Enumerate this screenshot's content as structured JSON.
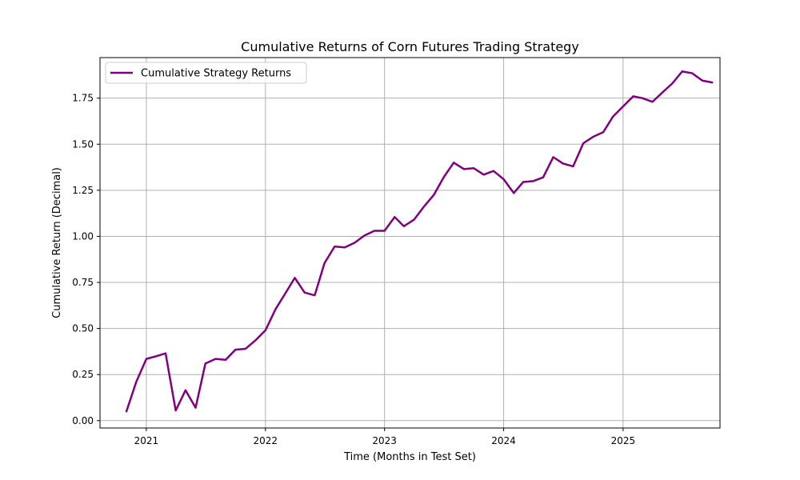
{
  "chart_data": {
    "type": "line",
    "title": "Cumulative Returns of Corn Futures Trading Strategy",
    "xlabel": "Time (Months in Test Set)",
    "ylabel": "Cumulative Return (Decimal)",
    "xlim": [
      "2020-08-12",
      "2025-10-25"
    ],
    "ylim": [
      -0.04,
      1.97
    ],
    "x_ticks": [
      "2021",
      "2022",
      "2023",
      "2024",
      "2025"
    ],
    "y_ticks": [
      "0.00",
      "0.25",
      "0.50",
      "0.75",
      "1.00",
      "1.25",
      "1.50",
      "1.75"
    ],
    "grid": true,
    "legend": "upper left",
    "colors": {
      "line": "#800080",
      "grid": "#b0b0b0"
    },
    "series": [
      {
        "name": "Cumulative Strategy Returns",
        "x": [
          "2020-11-01",
          "2020-12-01",
          "2021-01-01",
          "2021-02-01",
          "2021-03-01",
          "2021-04-01",
          "2021-05-01",
          "2021-06-01",
          "2021-07-01",
          "2021-08-01",
          "2021-09-01",
          "2021-10-01",
          "2021-11-01",
          "2021-12-01",
          "2022-01-01",
          "2022-02-01",
          "2022-03-01",
          "2022-04-01",
          "2022-05-01",
          "2022-06-01",
          "2022-07-01",
          "2022-08-01",
          "2022-09-01",
          "2022-10-01",
          "2022-11-01",
          "2022-12-01",
          "2023-01-01",
          "2023-02-01",
          "2023-03-01",
          "2023-04-01",
          "2023-05-01",
          "2023-06-01",
          "2023-07-01",
          "2023-08-01",
          "2023-09-01",
          "2023-10-01",
          "2023-11-01",
          "2023-12-01",
          "2024-01-01",
          "2024-02-01",
          "2024-03-01",
          "2024-04-01",
          "2024-05-01",
          "2024-06-01",
          "2024-07-01",
          "2024-08-01",
          "2024-09-01",
          "2024-10-01",
          "2024-11-01",
          "2024-12-01",
          "2025-01-01",
          "2025-02-01",
          "2025-03-01",
          "2025-04-01",
          "2025-05-01",
          "2025-06-01",
          "2025-07-01",
          "2025-08-01",
          "2025-09-01",
          "2025-10-01"
        ],
        "values": [
          0.05,
          0.21,
          0.335,
          0.35,
          0.365,
          0.055,
          0.165,
          0.07,
          0.31,
          0.335,
          0.33,
          0.385,
          0.39,
          0.435,
          0.49,
          0.605,
          0.685,
          0.775,
          0.695,
          0.68,
          0.855,
          0.945,
          0.94,
          0.965,
          1.005,
          1.03,
          1.03,
          1.105,
          1.055,
          1.09,
          1.16,
          1.225,
          1.32,
          1.4,
          1.365,
          1.37,
          1.335,
          1.355,
          1.31,
          1.235,
          1.295,
          1.3,
          1.32,
          1.43,
          1.395,
          1.38,
          1.505,
          1.54,
          1.565,
          1.65,
          1.705,
          1.76,
          1.75,
          1.73,
          1.78,
          1.83,
          1.895,
          1.885,
          1.845,
          1.835
        ]
      }
    ]
  }
}
